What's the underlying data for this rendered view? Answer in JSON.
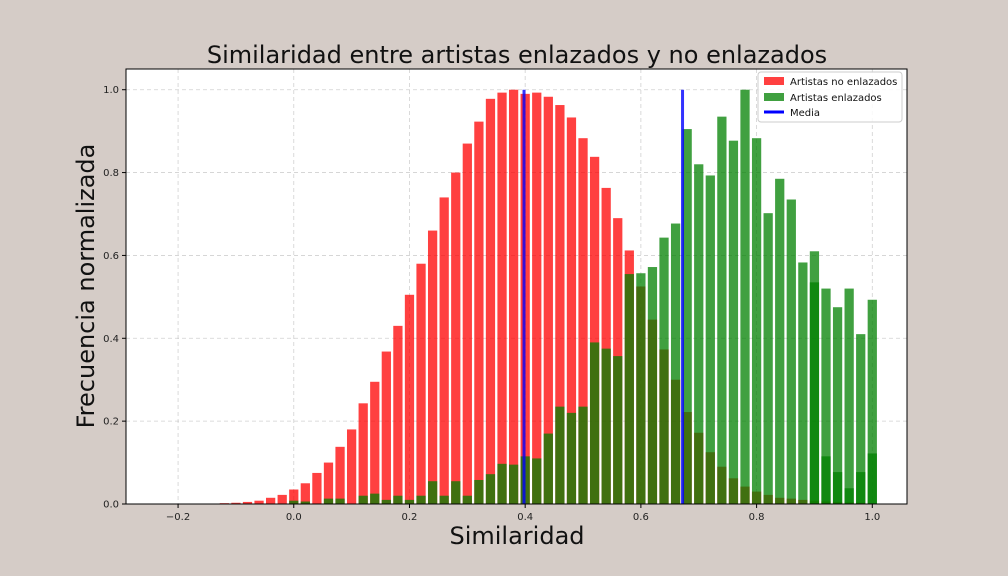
{
  "chart_data": {
    "type": "bar",
    "title": "Similaridad entre artistas enlazados y no enlazados",
    "xlabel": "Similaridad",
    "ylabel": "Frecuencia normalizada",
    "xlim": [
      -0.29,
      1.06
    ],
    "ylim": [
      0,
      1.05
    ],
    "xticks": [
      "−0.2",
      "0.0",
      "0.2",
      "0.4",
      "0.6",
      "0.8",
      "1.0"
    ],
    "xtick_values": [
      -0.2,
      0.0,
      0.2,
      0.4,
      0.6,
      0.8,
      1.0
    ],
    "yticks": [
      "0.0",
      "0.2",
      "0.4",
      "0.6",
      "0.8",
      "1.0"
    ],
    "ytick_values": [
      0.0,
      0.2,
      0.4,
      0.6,
      0.8,
      1.0
    ],
    "grid": true,
    "legend_position": "top-right",
    "bar_width": 0.016,
    "series": [
      {
        "name": "Artistas no enlazados",
        "color": "#ff0000",
        "x": [
          -0.12,
          -0.1,
          -0.08,
          -0.06,
          -0.04,
          -0.02,
          0.0,
          0.02,
          0.04,
          0.06,
          0.08,
          0.1,
          0.12,
          0.14,
          0.16,
          0.18,
          0.2,
          0.22,
          0.24,
          0.26,
          0.28,
          0.3,
          0.32,
          0.34,
          0.36,
          0.38,
          0.4,
          0.42,
          0.44,
          0.46,
          0.48,
          0.5,
          0.52,
          0.54,
          0.56,
          0.58,
          0.6,
          0.62,
          0.64,
          0.66,
          0.68,
          0.7,
          0.72,
          0.74,
          0.76,
          0.78,
          0.8,
          0.82,
          0.84,
          0.86,
          0.88,
          0.9,
          0.92,
          0.94,
          0.96,
          0.98
        ],
        "values": [
          0.002,
          0.003,
          0.005,
          0.008,
          0.015,
          0.022,
          0.035,
          0.05,
          0.075,
          0.1,
          0.138,
          0.18,
          0.243,
          0.295,
          0.368,
          0.43,
          0.505,
          0.58,
          0.66,
          0.74,
          0.8,
          0.87,
          0.923,
          0.978,
          0.993,
          1.0,
          0.99,
          0.993,
          0.983,
          0.963,
          0.933,
          0.883,
          0.838,
          0.763,
          0.69,
          0.612,
          0.525,
          0.445,
          0.373,
          0.3,
          0.222,
          0.172,
          0.125,
          0.09,
          0.062,
          0.042,
          0.03,
          0.022,
          0.015,
          0.013,
          0.01,
          0.008,
          0.006,
          0.005,
          0.004,
          0.003
        ]
      },
      {
        "name": "Artistas enlazados",
        "color": "#008000",
        "x": [
          0.0,
          0.02,
          0.06,
          0.08,
          0.12,
          0.14,
          0.16,
          0.18,
          0.2,
          0.22,
          0.24,
          0.26,
          0.28,
          0.3,
          0.32,
          0.34,
          0.36,
          0.38,
          0.4,
          0.42,
          0.44,
          0.46,
          0.48,
          0.5,
          0.52,
          0.54,
          0.56,
          0.58,
          0.6,
          0.62,
          0.64,
          0.66,
          0.68,
          0.7,
          0.72,
          0.74,
          0.76,
          0.78,
          0.8,
          0.82,
          0.84,
          0.86,
          0.88,
          0.9,
          0.92,
          0.94,
          0.96,
          0.98,
          1.0
        ],
        "values": [
          0.008,
          0.006,
          0.013,
          0.013,
          0.02,
          0.025,
          0.01,
          0.02,
          0.01,
          0.02,
          0.055,
          0.02,
          0.055,
          0.02,
          0.058,
          0.072,
          0.097,
          0.095,
          0.115,
          0.11,
          0.17,
          0.235,
          0.22,
          0.235,
          0.39,
          0.375,
          0.357,
          0.555,
          0.557,
          0.572,
          0.643,
          0.677,
          0.905,
          0.82,
          0.793,
          0.935,
          0.877,
          1.0,
          0.883,
          0.702,
          0.785,
          0.735,
          0.583,
          0.61,
          0.52,
          0.475,
          0.52,
          0.41,
          0.493
        ]
      }
    ],
    "green_tail": {
      "x": [
        0.9,
        0.92,
        0.94,
        0.96,
        0.98,
        1.0
      ],
      "values": [
        0.535,
        0.115,
        0.077,
        0.038,
        0.077,
        0.122
      ]
    },
    "mean_lines": {
      "name": "Media",
      "color": "#0000ff",
      "x": [
        0.398,
        0.672
      ],
      "top": 1.0
    }
  },
  "legend": {
    "items": [
      {
        "label": "Artistas no enlazados",
        "color": "#ff0000",
        "kind": "patch"
      },
      {
        "label": "Artistas enlazados",
        "color": "#008000",
        "kind": "patch"
      },
      {
        "label": "Media",
        "color": "#0000ff",
        "kind": "line"
      }
    ]
  }
}
